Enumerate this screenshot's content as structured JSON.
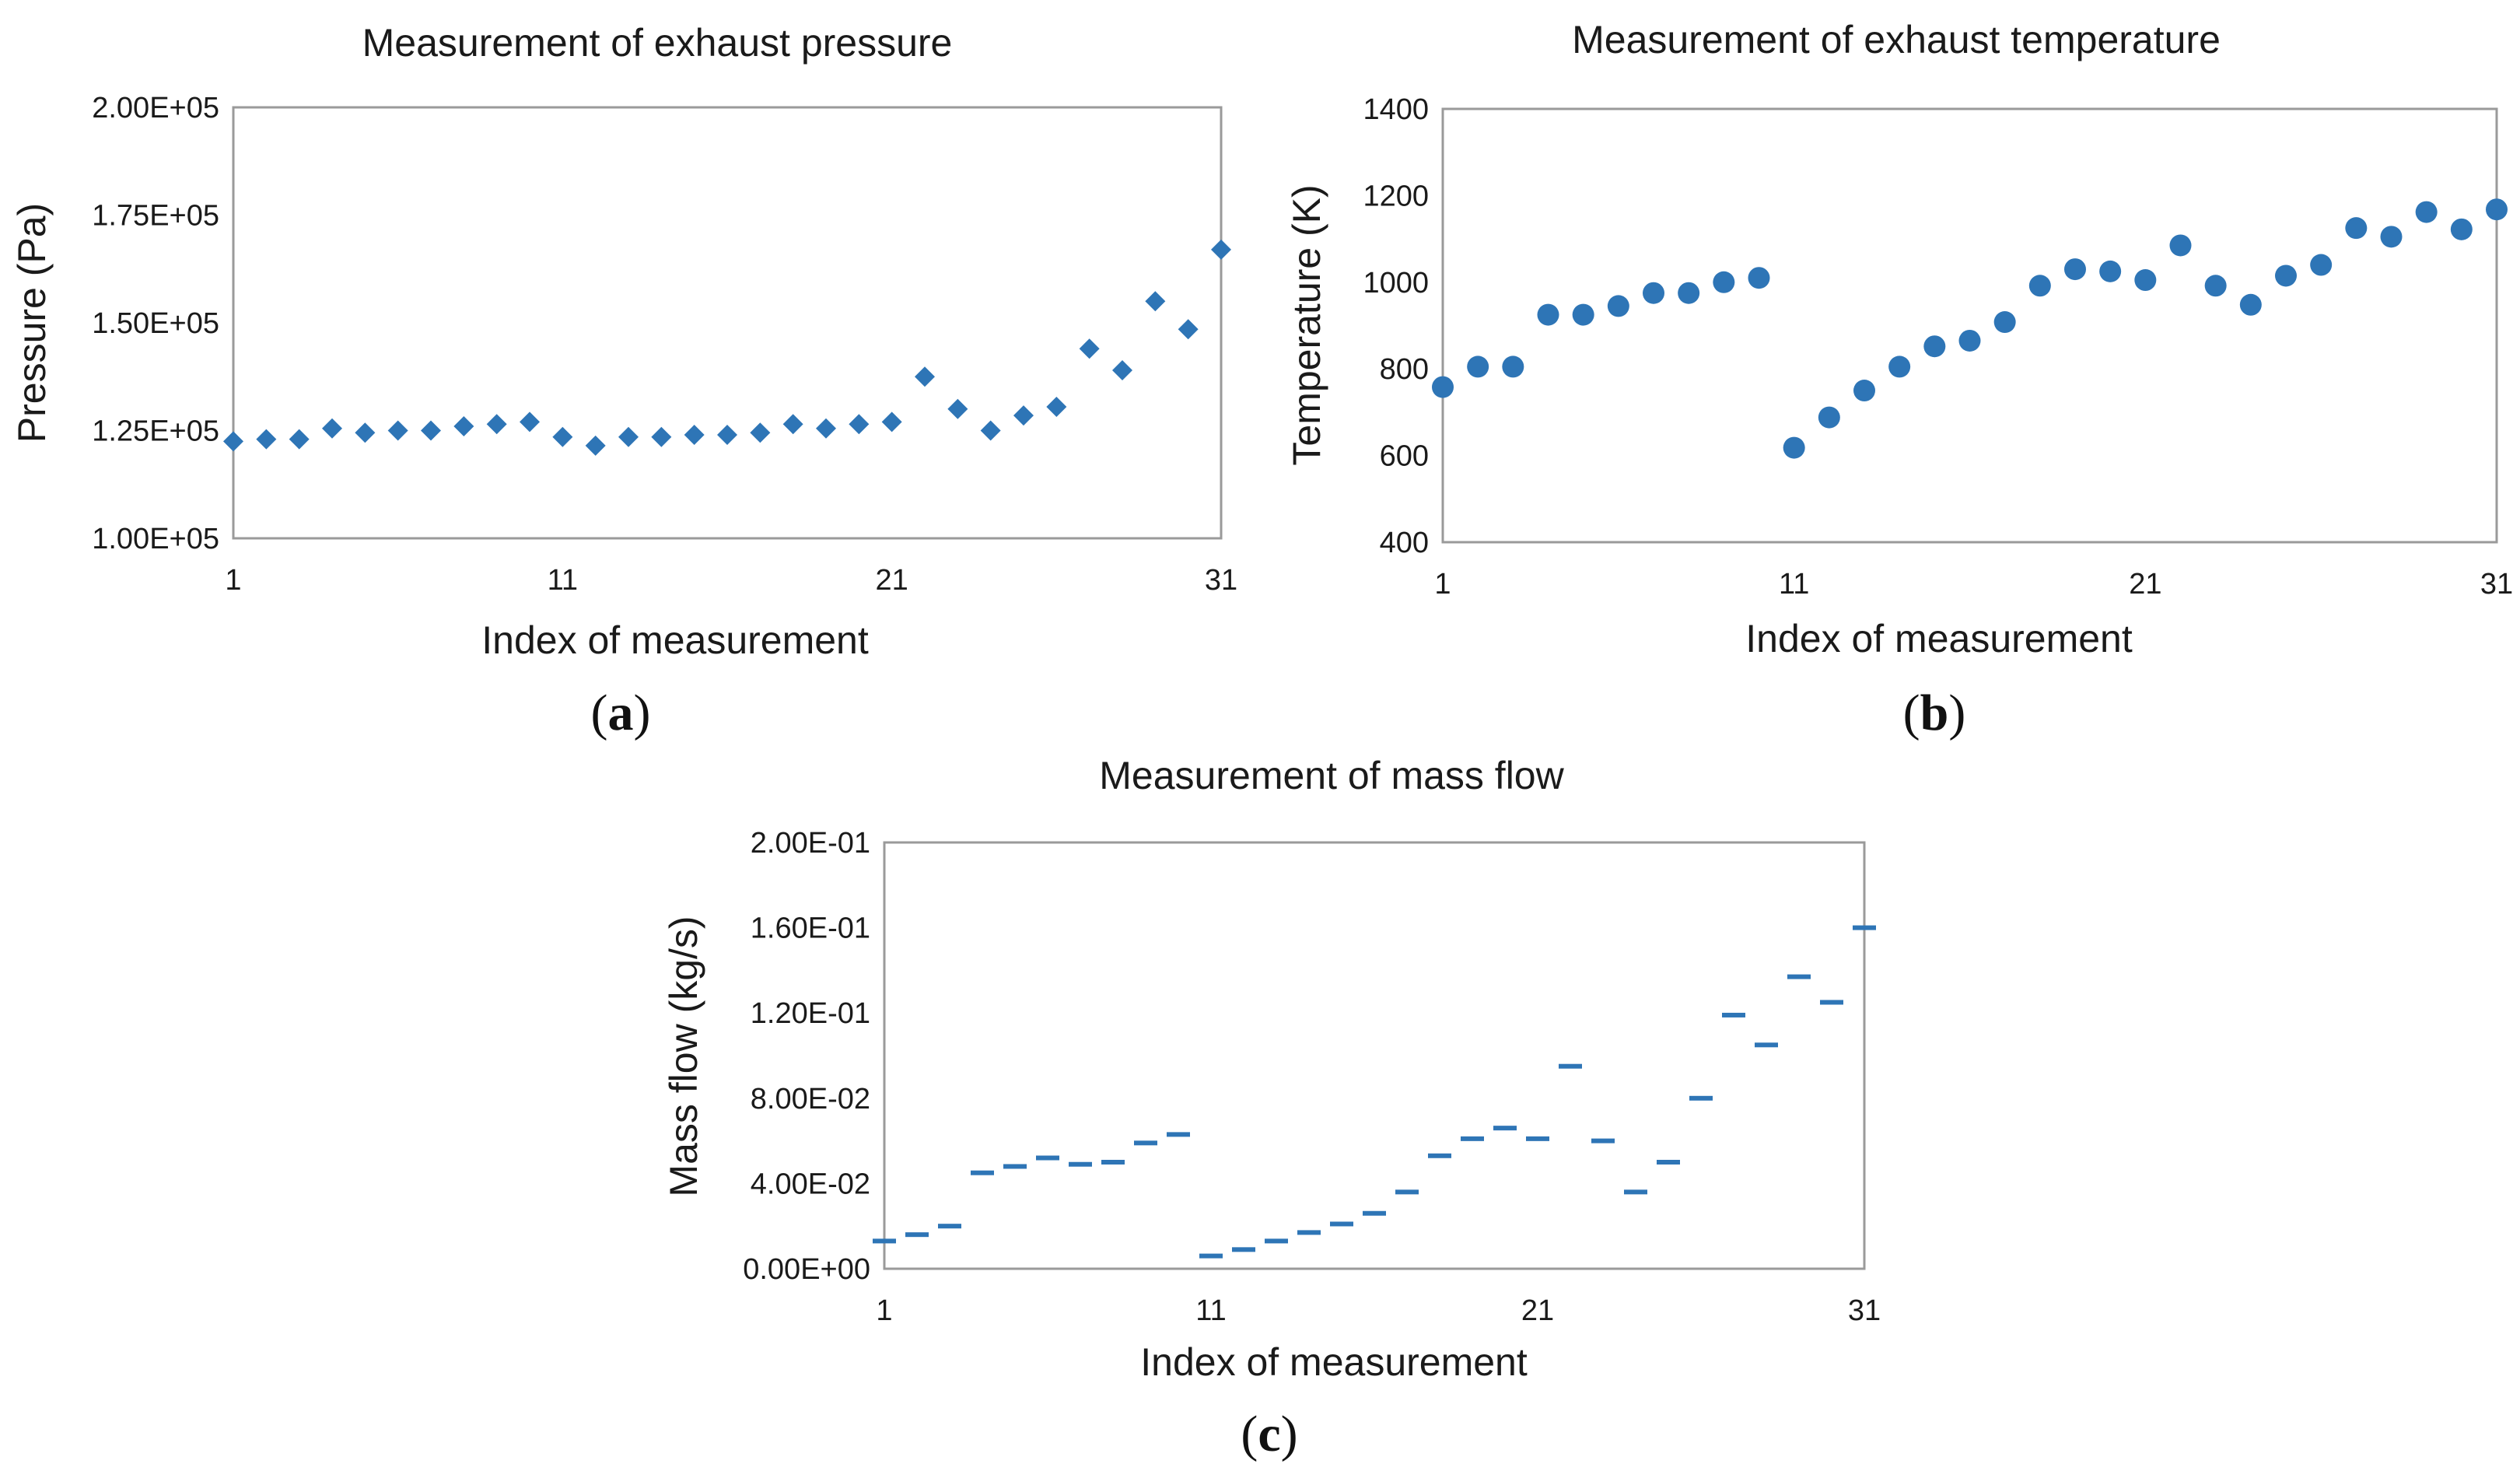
{
  "chart_data": [
    {
      "id": "a",
      "type": "scatter",
      "marker": "diamond",
      "title": "Measurement of exhaust pressure",
      "xlabel": "Index of measurement",
      "ylabel": "Pressure (Pa)",
      "caption_open": "(",
      "caption_letter": "a",
      "caption_close": ")",
      "xlim": [
        1,
        31
      ],
      "ylim": [
        100000,
        200000
      ],
      "xticks": [
        1,
        11,
        21,
        31
      ],
      "xtick_labels": [
        "1",
        "11",
        "21",
        "31"
      ],
      "yticks": [
        100000,
        125000,
        150000,
        175000,
        200000
      ],
      "ytick_labels": [
        "1.00E+05",
        "1.25E+05",
        "1.50E+05",
        "1.75E+05",
        "2.00E+05"
      ],
      "grid": false,
      "series": [
        {
          "name": "Pressure",
          "color": "#2e75b6",
          "x": [
            1,
            2,
            3,
            4,
            5,
            6,
            7,
            8,
            9,
            10,
            11,
            12,
            13,
            14,
            15,
            16,
            17,
            18,
            19,
            20,
            21,
            22,
            23,
            24,
            25,
            26,
            27,
            28,
            29,
            30,
            31
          ],
          "y": [
            122500,
            123000,
            123000,
            125500,
            124500,
            125000,
            125000,
            126000,
            126500,
            127000,
            123500,
            121500,
            123500,
            123500,
            124000,
            124000,
            124500,
            126500,
            125500,
            126500,
            127000,
            137500,
            130000,
            125000,
            128500,
            130500,
            144000,
            139000,
            155000,
            148500,
            167000
          ]
        }
      ]
    },
    {
      "id": "b",
      "type": "scatter",
      "marker": "circle",
      "title": "Measurement of exhaust temperature",
      "xlabel": "Index of measurement",
      "ylabel": "Temperature (K)",
      "caption_open": "(",
      "caption_letter": "b",
      "caption_close": ")",
      "xlim": [
        1,
        31
      ],
      "ylim": [
        400,
        1400
      ],
      "xticks": [
        1,
        11,
        21,
        31
      ],
      "xtick_labels": [
        "1",
        "11",
        "21",
        "31"
      ],
      "yticks": [
        400,
        600,
        800,
        1000,
        1200,
        1400
      ],
      "ytick_labels": [
        "400",
        "600",
        "800",
        "1000",
        "1200",
        "1400"
      ],
      "grid": false,
      "series": [
        {
          "name": "Temperature",
          "color": "#2e75b6",
          "x": [
            1,
            2,
            3,
            4,
            5,
            6,
            7,
            8,
            9,
            10,
            11,
            12,
            13,
            14,
            15,
            16,
            17,
            18,
            19,
            20,
            21,
            22,
            23,
            24,
            25,
            26,
            27,
            28,
            29,
            30,
            31
          ],
          "y": [
            758,
            805,
            805,
            925,
            925,
            945,
            975,
            975,
            1000,
            1010,
            618,
            688,
            750,
            805,
            852,
            865,
            908,
            992,
            1030,
            1025,
            1005,
            1085,
            992,
            948,
            1015,
            1040,
            1125,
            1105,
            1162,
            1122,
            1168
          ]
        }
      ]
    },
    {
      "id": "c",
      "type": "scatter",
      "marker": "dash",
      "title": "Measurement of mass flow",
      "xlabel": "Index of measurement",
      "ylabel": "Mass flow (kg/s)",
      "caption_open": "(",
      "caption_letter": "c",
      "caption_close": ")",
      "xlim": [
        1,
        31
      ],
      "ylim": [
        0,
        0.2
      ],
      "xticks": [
        1,
        11,
        21,
        31
      ],
      "xtick_labels": [
        "1",
        "11",
        "21",
        "31"
      ],
      "yticks": [
        0,
        0.04,
        0.08,
        0.12,
        0.16,
        0.2
      ],
      "ytick_labels": [
        "0.00E+00",
        "4.00E-02",
        "8.00E-02",
        "1.20E-01",
        "1.60E-01",
        "2.00E-01"
      ],
      "grid": false,
      "series": [
        {
          "name": "Mass flow",
          "color": "#2e75b6",
          "x": [
            1,
            2,
            3,
            4,
            5,
            6,
            7,
            8,
            9,
            10,
            11,
            12,
            13,
            14,
            15,
            16,
            17,
            18,
            19,
            20,
            21,
            22,
            23,
            24,
            25,
            26,
            27,
            28,
            29,
            30,
            31
          ],
          "y": [
            0.013,
            0.016,
            0.02,
            0.045,
            0.048,
            0.052,
            0.049,
            0.05,
            0.059,
            0.063,
            0.006,
            0.009,
            0.013,
            0.017,
            0.021,
            0.026,
            0.036,
            0.053,
            0.061,
            0.066,
            0.061,
            0.095,
            0.06,
            0.036,
            0.05,
            0.08,
            0.119,
            0.105,
            0.137,
            0.125,
            0.16
          ]
        }
      ]
    }
  ]
}
